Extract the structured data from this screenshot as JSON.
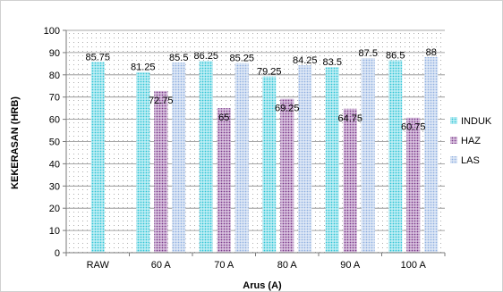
{
  "chart_data": {
    "type": "bar",
    "title": "",
    "xlabel": "Arus (A)",
    "ylabel": "KEKERASAN  (HRB)",
    "ylim": [
      0,
      100
    ],
    "ytick_step": 10,
    "grid": true,
    "legend_position": "right",
    "categories": [
      "RAW",
      "60 A",
      "70 A",
      "80 A",
      "90 A",
      "100 A"
    ],
    "series": [
      {
        "name": "INDUK",
        "color": "#2ec4d6",
        "values": [
          85.75,
          81.25,
          86.25,
          79.25,
          83.5,
          86.5
        ]
      },
      {
        "name": "HAZ",
        "color": "#7a3a8a",
        "values": [
          null,
          72.75,
          65,
          69.25,
          64.75,
          60.75
        ]
      },
      {
        "name": "LAS",
        "color": "#8fb0e0",
        "values": [
          null,
          85.5,
          85.25,
          84.25,
          87.5,
          88
        ]
      }
    ],
    "data_labels": [
      [
        "85.75",
        "81.25",
        "86.25",
        "79.25",
        "83.5",
        "86.5"
      ],
      [
        null,
        "72.75",
        "65",
        "69.25",
        "64.75",
        "60.75"
      ],
      [
        null,
        "85.5",
        "85.25",
        "84.25",
        "87.5",
        "88"
      ]
    ]
  }
}
